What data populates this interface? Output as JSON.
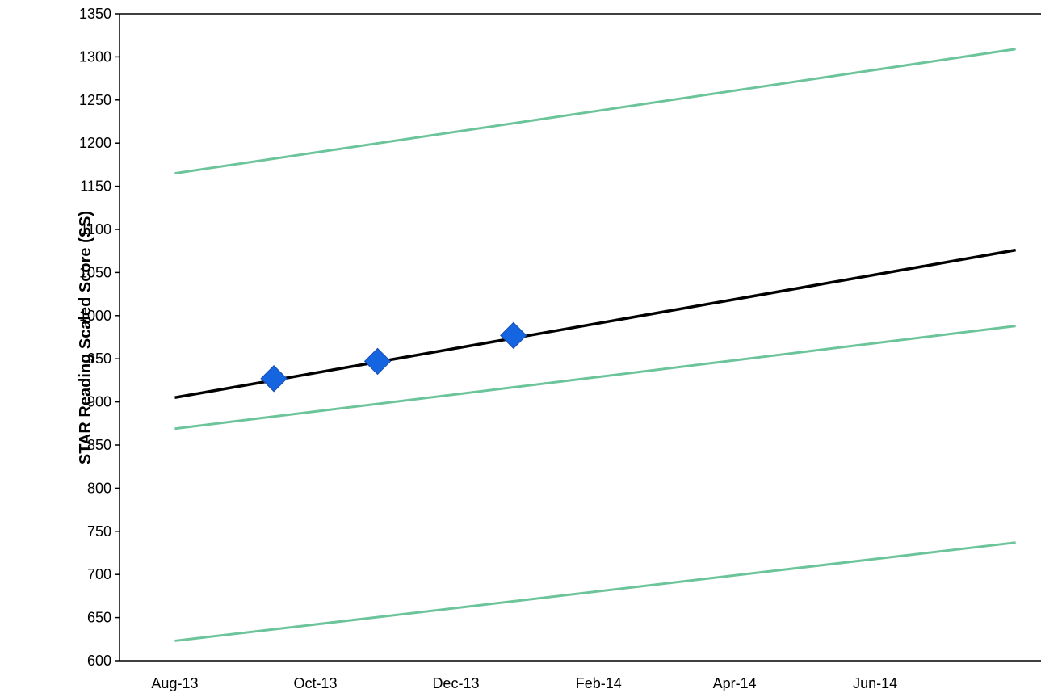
{
  "chart_data": {
    "type": "line",
    "title": "",
    "xlabel": "",
    "ylabel": "STAR Reading Scaled Score (SS)",
    "ylim": [
      600,
      1350
    ],
    "xlim": [
      "2013-07-08",
      "2014-08-12"
    ],
    "yticks": [
      600,
      650,
      700,
      750,
      800,
      850,
      900,
      950,
      1000,
      1050,
      1100,
      1150,
      1200,
      1250,
      1300,
      1350
    ],
    "xticks": [
      {
        "date": "2013-08-01",
        "label": "Aug-13"
      },
      {
        "date": "2013-10-01",
        "label": "Oct-13"
      },
      {
        "date": "2013-12-01",
        "label": "Dec-13"
      },
      {
        "date": "2014-02-01",
        "label": "Feb-14"
      },
      {
        "date": "2014-04-01",
        "label": "Apr-14"
      },
      {
        "date": "2014-06-01",
        "label": "Jun-14"
      }
    ],
    "grid": false,
    "legend": "none",
    "series": [
      {
        "kind": "line",
        "color": "#6cc49a",
        "points": [
          [
            "2013-08-01",
            1165
          ],
          [
            "2014-08-01",
            1309
          ]
        ]
      },
      {
        "kind": "line",
        "color": "#6cc49a",
        "points": [
          [
            "2013-08-01",
            869
          ],
          [
            "2014-08-01",
            988
          ]
        ]
      },
      {
        "kind": "line",
        "color": "#6cc49a",
        "points": [
          [
            "2013-08-01",
            623
          ],
          [
            "2014-08-01",
            737
          ]
        ]
      },
      {
        "kind": "line",
        "color": "#000000",
        "points": [
          [
            "2013-08-01",
            905
          ],
          [
            "2014-08-01",
            1076
          ]
        ]
      },
      {
        "kind": "scatter",
        "color": "#1565e0",
        "marker": "diamond",
        "points": [
          [
            "2013-09-13",
            927
          ],
          [
            "2013-10-28",
            947
          ],
          [
            "2013-12-26",
            977
          ]
        ]
      }
    ]
  }
}
